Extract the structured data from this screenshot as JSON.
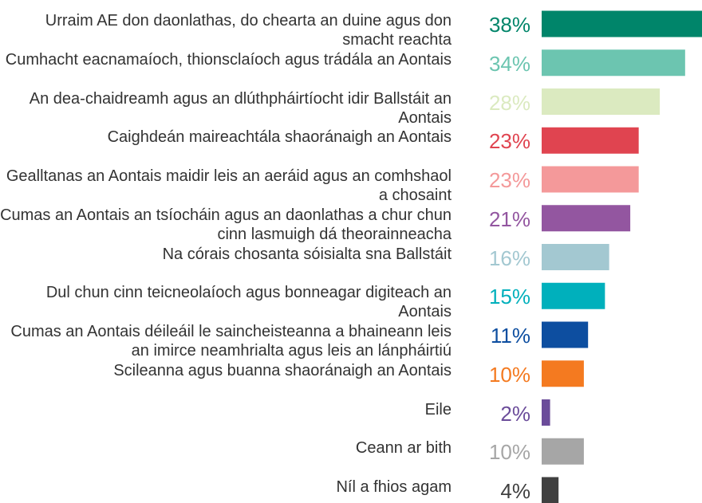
{
  "chart_data": {
    "type": "hbar",
    "categories": [
      "Urraim AE don daonlathas, do chearta an duine agus don smacht reachta",
      "Cumhacht eacnamaíoch, thionsclaíoch agus trádála an Aontais",
      "An dea-chaidreamh agus an dlúthpháirtíocht idir Ballstáit an Aontais",
      "Caighdeán maireachtála shaoránaigh an Aontais",
      "Gealltanas an Aontais maidir leis an aeráid agus an comhshaol a chosaint",
      "Cumas an Aontais an tsíocháin agus an daonlathas a chur chun cinn lasmuigh dá theorainneacha",
      "Na córais chosanta sóisialta sna Ballstáit",
      "Dul chun cinn teicneolaíoch agus bonneagar digiteach an Aontais",
      "Cumas an Aontais déileáil le saincheisteanna a bhaineann leis an imirce neamhrialta agus leis an lánpháirtiú",
      "Scileanna agus buanna shaoránaigh an Aontais",
      "Eile",
      "Ceann ar bith",
      "Níl a fhios agam"
    ],
    "values": [
      38,
      34,
      28,
      23,
      23,
      21,
      16,
      15,
      11,
      10,
      2,
      10,
      4
    ],
    "value_labels": [
      "38%",
      "34%",
      "28%",
      "23%",
      "23%",
      "21%",
      "16%",
      "15%",
      "11%",
      "10%",
      "2%",
      "10%",
      "4%"
    ],
    "colors": [
      "#00856a",
      "#6cc5b0",
      "#dbeac0",
      "#e04450",
      "#f4999a",
      "#9356a0",
      "#a3c8d1",
      "#00b0bc",
      "#0d4ea0",
      "#f47a20",
      "#6b4c9a",
      "#a6a6a6",
      "#404040"
    ],
    "xlim": [
      0,
      38
    ]
  }
}
